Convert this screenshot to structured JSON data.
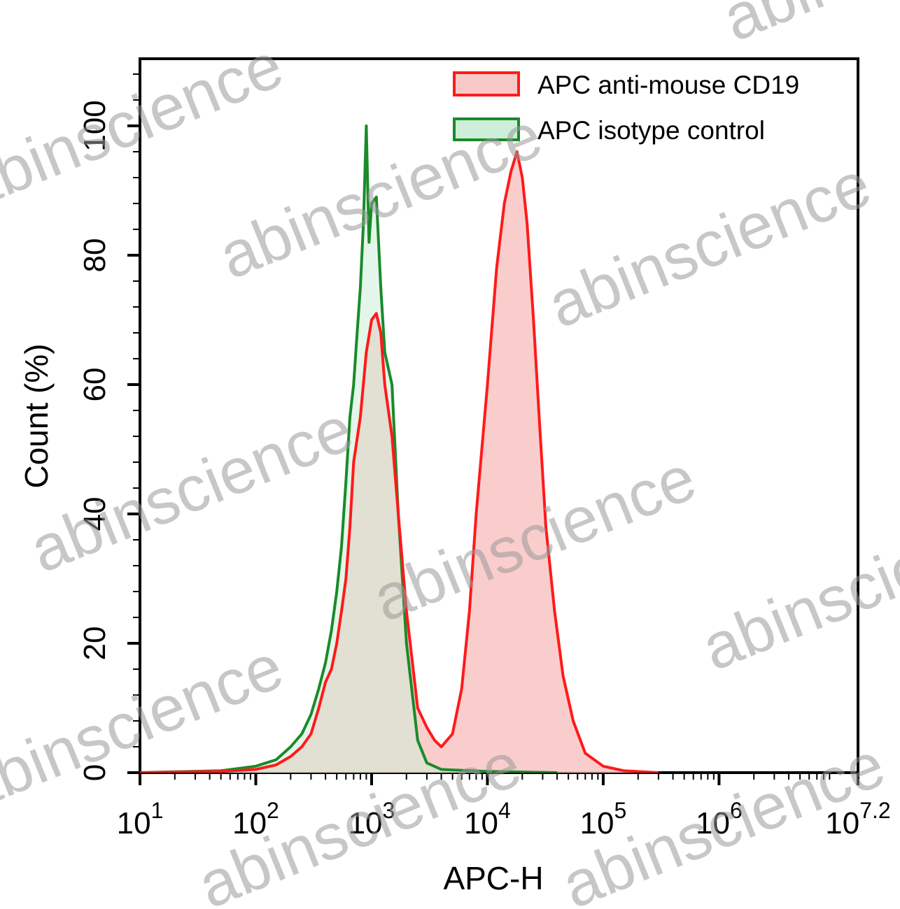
{
  "chart_data": {
    "type": "area",
    "xlabel": "APC-H",
    "ylabel": "Count (%)",
    "x_scale": "log10",
    "xlim": [
      10,
      15848932
    ],
    "ylim": [
      0,
      100
    ],
    "x_ticks": [
      {
        "value": 10,
        "base": "10",
        "exp": "1"
      },
      {
        "value": 100,
        "base": "10",
        "exp": "2"
      },
      {
        "value": 1000,
        "base": "10",
        "exp": "3"
      },
      {
        "value": 10000,
        "base": "10",
        "exp": "4"
      },
      {
        "value": 100000,
        "base": "10",
        "exp": "5"
      },
      {
        "value": 1000000,
        "base": "10",
        "exp": "6"
      },
      {
        "value": 15848932,
        "base": "10",
        "exp": "7.2"
      }
    ],
    "y_ticks": [
      {
        "value": 0,
        "label": "0"
      },
      {
        "value": 20,
        "label": "20"
      },
      {
        "value": 40,
        "label": "40"
      },
      {
        "value": 60,
        "label": "60"
      },
      {
        "value": 80,
        "label": "80"
      },
      {
        "value": 100,
        "label": "100"
      }
    ],
    "grid": false,
    "legend_position": "top-right",
    "series": [
      {
        "name": "APC anti-mouse CD19",
        "stroke": "#ff1a1a",
        "fill": "#f9c8c8",
        "x": [
          10,
          50,
          100,
          150,
          200,
          250,
          300,
          350,
          400,
          450,
          500,
          550,
          600,
          650,
          700,
          800,
          900,
          1000,
          1100,
          1200,
          1300,
          1500,
          1700,
          2000,
          2500,
          3000,
          3500,
          4000,
          5000,
          6000,
          7000,
          8000,
          10000,
          12000,
          14000,
          16000,
          18000,
          20000,
          22000,
          25000,
          28000,
          32000,
          38000,
          45000,
          55000,
          70000,
          100000,
          150000,
          300000
        ],
        "y": [
          0,
          0.2,
          0.5,
          1.2,
          2.5,
          4,
          6,
          10,
          14,
          16,
          20,
          25,
          30,
          38,
          48,
          55,
          65,
          70,
          71,
          68,
          60,
          52,
          40,
          25,
          10,
          7,
          5,
          4,
          6,
          13,
          25,
          40,
          60,
          78,
          88,
          93,
          96,
          92,
          85,
          70,
          55,
          38,
          25,
          15,
          8,
          3,
          1,
          0.3,
          0
        ]
      },
      {
        "name": "APC isotype control",
        "stroke": "#1a8a2a",
        "fill": "#cdeed8",
        "x": [
          10,
          50,
          100,
          150,
          200,
          250,
          300,
          350,
          400,
          450,
          500,
          550,
          600,
          650,
          700,
          750,
          800,
          850,
          900,
          950,
          1000,
          1100,
          1200,
          1300,
          1500,
          1700,
          2000,
          2500,
          3000,
          4000,
          10000,
          40000
        ],
        "y": [
          0,
          0.3,
          1,
          2,
          4,
          6,
          9,
          13,
          17,
          22,
          28,
          35,
          45,
          55,
          60,
          68,
          75,
          85,
          100,
          82,
          88,
          89,
          75,
          65,
          60,
          40,
          20,
          5,
          1.5,
          0.5,
          0.2,
          0
        ]
      }
    ]
  },
  "watermark": {
    "text": "abinscience"
  }
}
